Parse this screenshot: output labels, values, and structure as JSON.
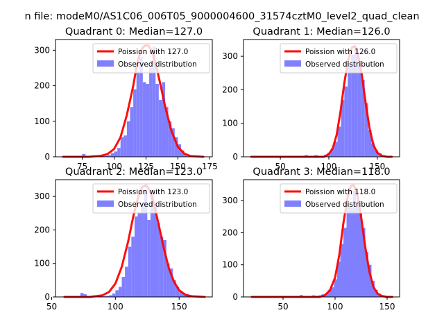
{
  "figure_title": "n file: modeM0/AS1C06_006T05_9000004600_31574cztM0_level2_quad_clean",
  "colors": {
    "hist": "#8080ff",
    "fit": "#ff0000",
    "axis": "#000000",
    "background": "#ffffff"
  },
  "chart_data": [
    {
      "type": "bar",
      "title": "Quadrant 0: Median=127.0",
      "xlim": [
        54,
        177
      ],
      "ylim": [
        0,
        330
      ],
      "xticks": [
        75,
        100,
        125,
        150,
        175
      ],
      "yticks": [
        0,
        100,
        200,
        300
      ],
      "legend": {
        "placement": "top-right",
        "fit_label": "Poission with 127.0",
        "hist_label": "Observed distribution"
      },
      "histogram": {
        "bin_width": 2.5,
        "bins": [
          {
            "x": 60,
            "y": 2
          },
          {
            "x": 62.5,
            "y": 2
          },
          {
            "x": 65,
            "y": 2
          },
          {
            "x": 67.5,
            "y": 2
          },
          {
            "x": 70,
            "y": 2
          },
          {
            "x": 72.5,
            "y": 3
          },
          {
            "x": 75,
            "y": 8
          },
          {
            "x": 77.5,
            "y": 2
          },
          {
            "x": 80,
            "y": 2
          },
          {
            "x": 82.5,
            "y": 2
          },
          {
            "x": 85,
            "y": 2
          },
          {
            "x": 87.5,
            "y": 2
          },
          {
            "x": 90,
            "y": 2
          },
          {
            "x": 92.5,
            "y": 3
          },
          {
            "x": 95,
            "y": 5
          },
          {
            "x": 97.5,
            "y": 10
          },
          {
            "x": 100,
            "y": 15
          },
          {
            "x": 102.5,
            "y": 25
          },
          {
            "x": 105,
            "y": 55
          },
          {
            "x": 107.5,
            "y": 60
          },
          {
            "x": 110,
            "y": 100
          },
          {
            "x": 112.5,
            "y": 140
          },
          {
            "x": 115,
            "y": 190
          },
          {
            "x": 117.5,
            "y": 240
          },
          {
            "x": 120,
            "y": 280
          },
          {
            "x": 122.5,
            "y": 210
          },
          {
            "x": 125,
            "y": 205
          },
          {
            "x": 127.5,
            "y": 250
          },
          {
            "x": 130,
            "y": 310
          },
          {
            "x": 132.5,
            "y": 205
          },
          {
            "x": 135,
            "y": 160
          },
          {
            "x": 137.5,
            "y": 210
          },
          {
            "x": 140,
            "y": 140
          },
          {
            "x": 142.5,
            "y": 100
          },
          {
            "x": 145,
            "y": 80
          },
          {
            "x": 147.5,
            "y": 55
          },
          {
            "x": 150,
            "y": 35
          },
          {
            "x": 152.5,
            "y": 18
          },
          {
            "x": 155,
            "y": 8
          },
          {
            "x": 157.5,
            "y": 5
          },
          {
            "x": 160,
            "y": 3
          }
        ]
      },
      "fit_curve": [
        {
          "x": 60,
          "y": 0
        },
        {
          "x": 80,
          "y": 0
        },
        {
          "x": 90,
          "y": 3
        },
        {
          "x": 95,
          "y": 8
        },
        {
          "x": 100,
          "y": 22
        },
        {
          "x": 105,
          "y": 55
        },
        {
          "x": 110,
          "y": 118
        },
        {
          "x": 115,
          "y": 200
        },
        {
          "x": 118,
          "y": 262
        },
        {
          "x": 121,
          "y": 300
        },
        {
          "x": 124,
          "y": 313
        },
        {
          "x": 127,
          "y": 313
        },
        {
          "x": 130,
          "y": 296
        },
        {
          "x": 133,
          "y": 256
        },
        {
          "x": 136,
          "y": 208
        },
        {
          "x": 140,
          "y": 142
        },
        {
          "x": 145,
          "y": 72
        },
        {
          "x": 150,
          "y": 28
        },
        {
          "x": 155,
          "y": 9
        },
        {
          "x": 160,
          "y": 2
        },
        {
          "x": 170,
          "y": 0
        }
      ]
    },
    {
      "type": "bar",
      "title": "Quadrant 1: Median=126.0",
      "xlim": [
        12,
        173
      ],
      "ylim": [
        0,
        350
      ],
      "xticks": [
        50,
        100,
        150
      ],
      "yticks": [
        0,
        100,
        200,
        300
      ],
      "legend": {
        "placement": "top-right",
        "fit_label": "Poission with 126.0",
        "hist_label": "Observed distribution"
      },
      "histogram": {
        "bin_width": 3.5,
        "bins": [
          {
            "x": 20,
            "y": 2
          },
          {
            "x": 30,
            "y": 2
          },
          {
            "x": 40,
            "y": 2
          },
          {
            "x": 50,
            "y": 2
          },
          {
            "x": 60,
            "y": 2
          },
          {
            "x": 70,
            "y": 2
          },
          {
            "x": 75,
            "y": 5
          },
          {
            "x": 80,
            "y": 3
          },
          {
            "x": 85,
            "y": 5
          },
          {
            "x": 90,
            "y": 3
          },
          {
            "x": 95,
            "y": 6
          },
          {
            "x": 98.5,
            "y": 12
          },
          {
            "x": 102,
            "y": 25
          },
          {
            "x": 105.5,
            "y": 45
          },
          {
            "x": 109,
            "y": 90
          },
          {
            "x": 112.5,
            "y": 170
          },
          {
            "x": 116,
            "y": 210
          },
          {
            "x": 119.5,
            "y": 280
          },
          {
            "x": 123,
            "y": 305
          },
          {
            "x": 126.5,
            "y": 325
          },
          {
            "x": 130,
            "y": 280
          },
          {
            "x": 133.5,
            "y": 230
          },
          {
            "x": 137,
            "y": 160
          },
          {
            "x": 140.5,
            "y": 80
          },
          {
            "x": 144,
            "y": 40
          },
          {
            "x": 147.5,
            "y": 20
          },
          {
            "x": 151,
            "y": 10
          },
          {
            "x": 154.5,
            "y": 5
          }
        ]
      },
      "fit_curve": [
        {
          "x": 20,
          "y": 0
        },
        {
          "x": 95,
          "y": 0
        },
        {
          "x": 100,
          "y": 8
        },
        {
          "x": 104,
          "y": 25
        },
        {
          "x": 108,
          "y": 65
        },
        {
          "x": 112,
          "y": 135
        },
        {
          "x": 116,
          "y": 220
        },
        {
          "x": 120,
          "y": 290
        },
        {
          "x": 124,
          "y": 327
        },
        {
          "x": 127,
          "y": 330
        },
        {
          "x": 130,
          "y": 308
        },
        {
          "x": 134,
          "y": 245
        },
        {
          "x": 138,
          "y": 160
        },
        {
          "x": 142,
          "y": 85
        },
        {
          "x": 146,
          "y": 35
        },
        {
          "x": 150,
          "y": 12
        },
        {
          "x": 155,
          "y": 3
        },
        {
          "x": 160,
          "y": 0
        },
        {
          "x": 165,
          "y": 0
        }
      ]
    },
    {
      "type": "bar",
      "title": "Quadrant 2: Median=123.0",
      "xlim": [
        53,
        176
      ],
      "ylim": [
        0,
        350
      ],
      "xticks": [
        50,
        100,
        150
      ],
      "yticks": [
        0,
        100,
        200,
        300
      ],
      "legend": {
        "placement": "top-right",
        "fit_label": "Poission with 123.0",
        "hist_label": "Observed distribution"
      },
      "histogram": {
        "bin_width": 2.5,
        "bins": [
          {
            "x": 60,
            "y": 2
          },
          {
            "x": 62.5,
            "y": 2
          },
          {
            "x": 65,
            "y": 2
          },
          {
            "x": 67.5,
            "y": 2
          },
          {
            "x": 70,
            "y": 2
          },
          {
            "x": 72.5,
            "y": 12
          },
          {
            "x": 75,
            "y": 8
          },
          {
            "x": 77.5,
            "y": 3
          },
          {
            "x": 80,
            "y": 2
          },
          {
            "x": 82.5,
            "y": 2
          },
          {
            "x": 85,
            "y": 2
          },
          {
            "x": 87.5,
            "y": 3
          },
          {
            "x": 90,
            "y": 2
          },
          {
            "x": 92.5,
            "y": 3
          },
          {
            "x": 95,
            "y": 5
          },
          {
            "x": 97.5,
            "y": 10
          },
          {
            "x": 100,
            "y": 20
          },
          {
            "x": 102.5,
            "y": 30
          },
          {
            "x": 105,
            "y": 60
          },
          {
            "x": 107.5,
            "y": 90
          },
          {
            "x": 110,
            "y": 150
          },
          {
            "x": 112.5,
            "y": 180
          },
          {
            "x": 115,
            "y": 240
          },
          {
            "x": 117.5,
            "y": 250
          },
          {
            "x": 120,
            "y": 280
          },
          {
            "x": 122.5,
            "y": 320
          },
          {
            "x": 125,
            "y": 230
          },
          {
            "x": 127.5,
            "y": 320
          },
          {
            "x": 130,
            "y": 280
          },
          {
            "x": 132.5,
            "y": 220
          },
          {
            "x": 135,
            "y": 180
          },
          {
            "x": 137.5,
            "y": 170
          },
          {
            "x": 140,
            "y": 100
          },
          {
            "x": 142.5,
            "y": 85
          },
          {
            "x": 145,
            "y": 50
          },
          {
            "x": 147.5,
            "y": 30
          },
          {
            "x": 150,
            "y": 18
          },
          {
            "x": 152.5,
            "y": 12
          },
          {
            "x": 155,
            "y": 8
          },
          {
            "x": 157.5,
            "y": 4
          },
          {
            "x": 160,
            "y": 3
          }
        ]
      },
      "fit_curve": [
        {
          "x": 60,
          "y": 0
        },
        {
          "x": 80,
          "y": 0
        },
        {
          "x": 90,
          "y": 5
        },
        {
          "x": 95,
          "y": 15
        },
        {
          "x": 100,
          "y": 40
        },
        {
          "x": 105,
          "y": 90
        },
        {
          "x": 110,
          "y": 165
        },
        {
          "x": 114,
          "y": 240
        },
        {
          "x": 118,
          "y": 300
        },
        {
          "x": 121,
          "y": 328
        },
        {
          "x": 124,
          "y": 333
        },
        {
          "x": 127,
          "y": 318
        },
        {
          "x": 130,
          "y": 283
        },
        {
          "x": 134,
          "y": 215
        },
        {
          "x": 138,
          "y": 145
        },
        {
          "x": 142,
          "y": 85
        },
        {
          "x": 146,
          "y": 45
        },
        {
          "x": 150,
          "y": 20
        },
        {
          "x": 155,
          "y": 6
        },
        {
          "x": 160,
          "y": 2
        },
        {
          "x": 170,
          "y": 0
        }
      ]
    },
    {
      "type": "bar",
      "title": "Quadrant 3: Median=118.0",
      "xlim": [
        12,
        162
      ],
      "ylim": [
        0,
        365
      ],
      "xticks": [
        50,
        100,
        150
      ],
      "yticks": [
        0,
        100,
        200,
        300
      ],
      "legend": {
        "placement": "top-right",
        "fit_label": "Poission with 118.0",
        "hist_label": "Observed distribution"
      },
      "histogram": {
        "bin_width": 3,
        "bins": [
          {
            "x": 20,
            "y": 2
          },
          {
            "x": 30,
            "y": 2
          },
          {
            "x": 40,
            "y": 2
          },
          {
            "x": 50,
            "y": 2
          },
          {
            "x": 55,
            "y": 3
          },
          {
            "x": 60,
            "y": 3
          },
          {
            "x": 66,
            "y": 6
          },
          {
            "x": 72,
            "y": 3
          },
          {
            "x": 78,
            "y": 5
          },
          {
            "x": 84,
            "y": 5
          },
          {
            "x": 87,
            "y": 8
          },
          {
            "x": 90,
            "y": 10
          },
          {
            "x": 93,
            "y": 22
          },
          {
            "x": 96,
            "y": 30
          },
          {
            "x": 99,
            "y": 55
          },
          {
            "x": 102,
            "y": 110
          },
          {
            "x": 105,
            "y": 165
          },
          {
            "x": 108,
            "y": 215
          },
          {
            "x": 111,
            "y": 290
          },
          {
            "x": 114,
            "y": 280
          },
          {
            "x": 117,
            "y": 330
          },
          {
            "x": 120,
            "y": 290
          },
          {
            "x": 123,
            "y": 260
          },
          {
            "x": 126,
            "y": 215
          },
          {
            "x": 129,
            "y": 140
          },
          {
            "x": 132,
            "y": 100
          },
          {
            "x": 135,
            "y": 50
          },
          {
            "x": 138,
            "y": 22
          },
          {
            "x": 141,
            "y": 10
          },
          {
            "x": 144,
            "y": 5
          }
        ]
      },
      "fit_curve": [
        {
          "x": 20,
          "y": 0
        },
        {
          "x": 85,
          "y": 0
        },
        {
          "x": 90,
          "y": 5
        },
        {
          "x": 95,
          "y": 20
        },
        {
          "x": 100,
          "y": 60
        },
        {
          "x": 104,
          "y": 130
        },
        {
          "x": 108,
          "y": 230
        },
        {
          "x": 112,
          "y": 310
        },
        {
          "x": 115,
          "y": 345
        },
        {
          "x": 118,
          "y": 348
        },
        {
          "x": 121,
          "y": 323
        },
        {
          "x": 125,
          "y": 250
        },
        {
          "x": 129,
          "y": 155
        },
        {
          "x": 133,
          "y": 78
        },
        {
          "x": 137,
          "y": 30
        },
        {
          "x": 141,
          "y": 10
        },
        {
          "x": 145,
          "y": 3
        },
        {
          "x": 150,
          "y": 0
        },
        {
          "x": 155,
          "y": 0
        }
      ]
    }
  ]
}
